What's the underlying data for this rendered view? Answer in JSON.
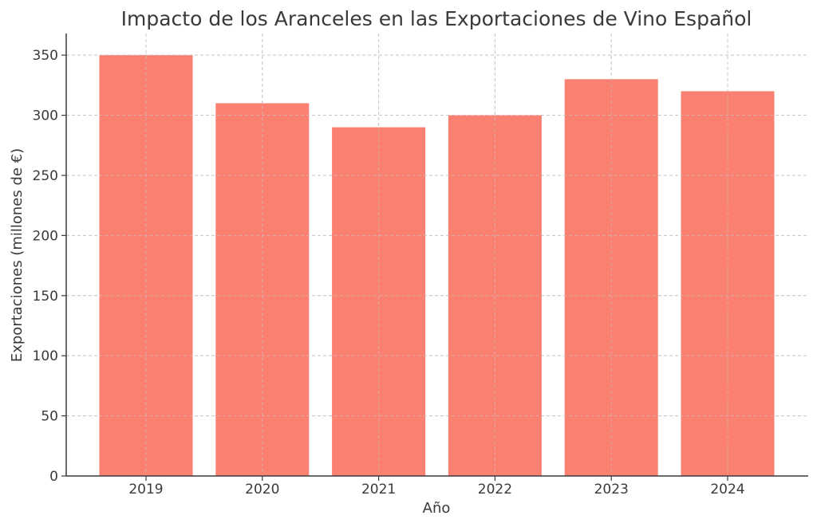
{
  "chart_data": {
    "type": "bar",
    "title": "Impacto de los Aranceles en las Exportaciones de Vino Español",
    "xlabel": "Año",
    "ylabel": "Exportaciones (millones de €)",
    "categories": [
      "2019",
      "2020",
      "2021",
      "2022",
      "2023",
      "2024"
    ],
    "values": [
      350,
      310,
      290,
      300,
      330,
      320
    ],
    "ylim": [
      0,
      368
    ],
    "yticks": [
      0,
      50,
      100,
      150,
      200,
      250,
      300,
      350
    ],
    "grid": true,
    "bar_color": "#fa8072",
    "axis_color": "#3a3a3a",
    "grid_color": "#c8c8c8"
  }
}
